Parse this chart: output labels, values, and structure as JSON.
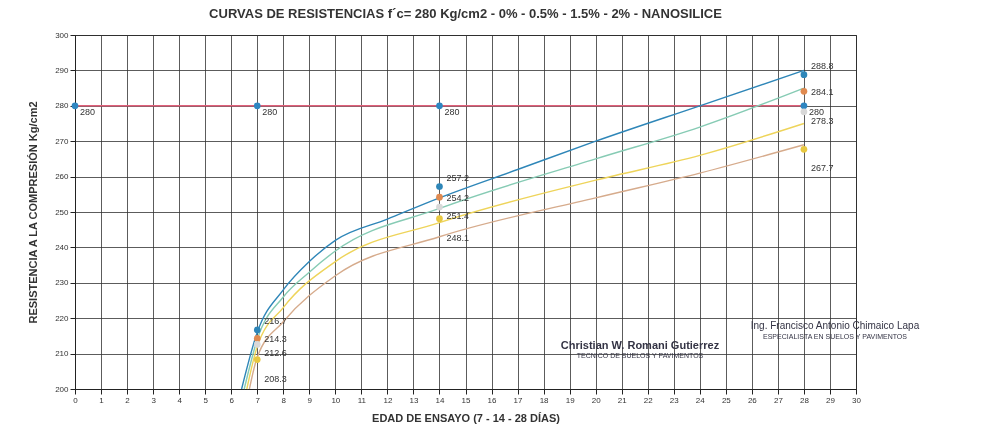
{
  "chart_data": {
    "type": "line",
    "title": "CURVAS DE RESISTENCIAS f´c= 280 Kg/cm2 - 0% - 0.5% - 1.5% - 2% - NANOSILICE",
    "xlabel": "EDAD DE ENSAYO (7 - 14 - 28 DÍAS)",
    "ylabel": "RESISTENCIA A LA COMPRESIÓN Kg/cm2",
    "xlim": [
      0,
      30
    ],
    "xticks": [
      0,
      1,
      2,
      3,
      4,
      5,
      6,
      7,
      8,
      9,
      10,
      11,
      12,
      13,
      14,
      15,
      16,
      17,
      18,
      19,
      20,
      21,
      22,
      23,
      24,
      25,
      26,
      27,
      28,
      29,
      30
    ],
    "ylim": [
      200,
      300
    ],
    "yticks": [
      200,
      210,
      220,
      230,
      240,
      250,
      260,
      270,
      280,
      290,
      300
    ],
    "grid": true,
    "series": [
      {
        "type": "line",
        "color": "#e0607a",
        "x": [
          0,
          7,
          14,
          28
        ],
        "values": [
          280,
          280,
          280,
          280
        ],
        "marker": "none"
      },
      {
        "type": "line",
        "color": "#2e86b8",
        "x": [
          6.4,
          7,
          8,
          9,
          10,
          12,
          14,
          17,
          20,
          24,
          28
        ],
        "values": [
          200,
          216,
          228,
          236,
          242,
          248,
          254,
          262,
          270,
          280,
          290
        ],
        "marker": "none"
      },
      {
        "type": "line",
        "color": "#86cbb4",
        "x": [
          6.5,
          7,
          8,
          9,
          10,
          14,
          20,
          24,
          28
        ],
        "values": [
          200,
          214,
          226,
          233,
          239,
          251,
          265,
          274,
          285
        ],
        "marker": "none"
      },
      {
        "type": "line",
        "color": "#eed45a",
        "x": [
          6.6,
          7,
          8,
          10,
          14,
          20,
          24,
          28
        ],
        "values": [
          200,
          212,
          223,
          236,
          247,
          259,
          266,
          275
        ],
        "marker": "none"
      },
      {
        "type": "line",
        "color": "#d6ab8c",
        "x": [
          6.7,
          7,
          8,
          10,
          14,
          20,
          24,
          28
        ],
        "values": [
          200,
          209,
          219,
          232,
          243,
          254,
          261,
          269
        ],
        "marker": "none"
      },
      {
        "type": "scatter",
        "color": "#2e86c1",
        "x": [
          0,
          7,
          14,
          28
        ],
        "values": [
          280,
          280,
          280,
          280
        ],
        "marker": "circle",
        "value_labels": [
          "280",
          "280",
          "280",
          "280"
        ]
      },
      {
        "type": "scatter",
        "color": "#2e86b8",
        "x": [
          7,
          14,
          28
        ],
        "values": [
          216.7,
          257.2,
          288.8
        ],
        "marker": "circle",
        "value_labels": [
          "216.7",
          "257.2",
          "288.8"
        ]
      },
      {
        "type": "scatter",
        "color": "#e08a50",
        "x": [
          7,
          14,
          28
        ],
        "values": [
          214.3,
          254.2,
          284.1
        ],
        "marker": "circle",
        "value_labels": [
          "214.3",
          "254.2",
          "284.1"
        ]
      },
      {
        "type": "scatter",
        "color": "#d8d8d8",
        "x": [
          7,
          14,
          28
        ],
        "values": [
          212.6,
          251.4,
          278.3
        ],
        "marker": "circle",
        "value_labels": [
          "212.6",
          "251.4",
          "278.3"
        ]
      },
      {
        "type": "scatter",
        "color": "#e8c840",
        "x": [
          7,
          14,
          28
        ],
        "values": [
          208.3,
          248.1,
          267.7
        ],
        "marker": "circle",
        "value_labels": [
          "208.3",
          "248.1",
          "267.7"
        ]
      }
    ],
    "annotations": [
      "Christian W. Romani Gutierrez",
      "TECNICO DE SUELOS Y PAVIMENTOS",
      "Ing. Francisco Antonio Chimaico Lapa",
      "ESPECIALISTA EN SUELOS Y PAVIMENTOS"
    ]
  }
}
